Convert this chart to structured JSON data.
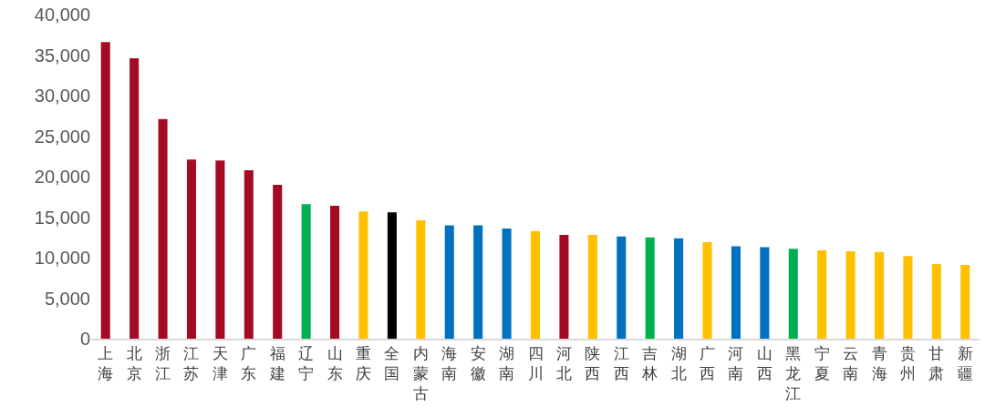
{
  "chart_data": {
    "type": "bar",
    "categories": [
      "上海",
      "北京",
      "浙江",
      "江苏",
      "天津",
      "广东",
      "福建",
      "辽宁",
      "山东",
      "重庆",
      "全国",
      "内蒙古",
      "海南",
      "安徽",
      "湖南",
      "四川",
      "河北",
      "陕西",
      "江西",
      "吉林",
      "湖北",
      "广西",
      "河南",
      "山西",
      "黑龙江",
      "宁夏",
      "云南",
      "青海",
      "贵州",
      "甘肃",
      "新疆"
    ],
    "values": [
      36600,
      34600,
      27100,
      22100,
      22000,
      20800,
      19000,
      16600,
      16400,
      15700,
      15600,
      14600,
      14000,
      14000,
      13600,
      13300,
      12800,
      12800,
      12600,
      12500,
      12400,
      11900,
      11400,
      11300,
      11100,
      10900,
      10800,
      10700,
      10200,
      9200,
      9100
    ],
    "colors": [
      "#a50a23",
      "#a50a23",
      "#a50a23",
      "#a50a23",
      "#a50a23",
      "#a50a23",
      "#a50a23",
      "#00b050",
      "#a50a23",
      "#ffc000",
      "#000000",
      "#ffc000",
      "#0070c0",
      "#0070c0",
      "#0070c0",
      "#ffc000",
      "#a50a23",
      "#ffc000",
      "#0070c0",
      "#00b050",
      "#0070c0",
      "#ffc000",
      "#0070c0",
      "#0070c0",
      "#00b050",
      "#ffc000",
      "#ffc000",
      "#ffc000",
      "#ffc000",
      "#ffc000",
      "#ffc000"
    ],
    "ylim": [
      0,
      40000
    ],
    "yticks": [
      0,
      {
        "value": 5000,
        "label": "5,000"
      },
      {
        "value": 10000,
        "label": "10,000"
      },
      {
        "value": 15000,
        "label": "15,000"
      },
      {
        "value": 20000,
        "label": "20,000"
      },
      {
        "value": 25000,
        "label": "25,000"
      },
      {
        "value": 30000,
        "label": "30,000"
      },
      {
        "value": 35000,
        "label": "35,000"
      },
      {
        "value": 40000,
        "label": "40,000"
      }
    ]
  }
}
